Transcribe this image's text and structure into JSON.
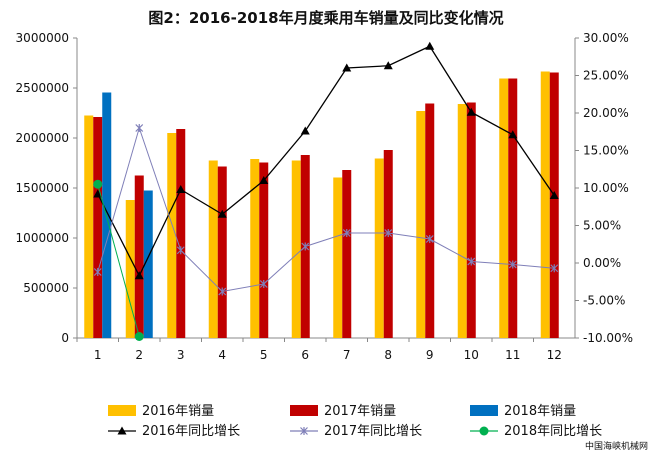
{
  "chart_data": {
    "type": "bar",
    "title": "图2：2016-2018年月度乘用车销量及同比变化情况",
    "categories": [
      "1",
      "2",
      "3",
      "4",
      "5",
      "6",
      "7",
      "8",
      "9",
      "10",
      "11",
      "12"
    ],
    "left_axis": {
      "ylim": [
        0,
        3000000
      ],
      "ticks": [
        "0",
        "500000",
        "1000000",
        "1500000",
        "2000000",
        "2500000",
        "3000000"
      ]
    },
    "right_axis": {
      "ylim": [
        -0.1,
        0.3
      ],
      "ticks": [
        "-10.00%",
        "-5.00%",
        "0.00%",
        "5.00%",
        "10.00%",
        "15.00%",
        "20.00%",
        "25.00%",
        "30.00%"
      ]
    },
    "bar_series": [
      {
        "name": "2016年销量",
        "color": "#FFC000",
        "values": [
          2225000,
          1380000,
          2050000,
          1775000,
          1790000,
          1775000,
          1605000,
          1795000,
          2270000,
          2340000,
          2595000,
          2665000
        ]
      },
      {
        "name": "2017年销量",
        "color": "#C00000",
        "values": [
          2210000,
          1625000,
          2090000,
          1715000,
          1755000,
          1830000,
          1680000,
          1880000,
          2345000,
          2355000,
          2595000,
          2655000
        ]
      },
      {
        "name": "2018年销量",
        "color": "#0070C0",
        "values": [
          2455000,
          1475000,
          null,
          null,
          null,
          null,
          null,
          null,
          null,
          null,
          null,
          null
        ]
      }
    ],
    "line_series": [
      {
        "name": "2016年同比增长",
        "color": "#000000",
        "marker": "triangle",
        "values": [
          0.092,
          -0.017,
          0.098,
          0.065,
          0.11,
          0.176,
          0.26,
          0.263,
          0.289,
          0.201,
          0.171,
          0.09
        ]
      },
      {
        "name": "2017年同比增长",
        "color": "#7F7FB8",
        "marker": "star",
        "values": [
          -0.012,
          0.18,
          0.017,
          -0.038,
          -0.028,
          0.022,
          0.04,
          0.04,
          0.032,
          0.002,
          -0.002,
          -0.007
        ]
      },
      {
        "name": "2018年同比增长",
        "color": "#00B050",
        "marker": "circle",
        "values": [
          0.105,
          -0.098,
          null,
          null,
          null,
          null,
          null,
          null,
          null,
          null,
          null,
          null
        ]
      }
    ],
    "legend_position": "bottom",
    "grid": false
  },
  "watermark": "中国海峡机械网"
}
